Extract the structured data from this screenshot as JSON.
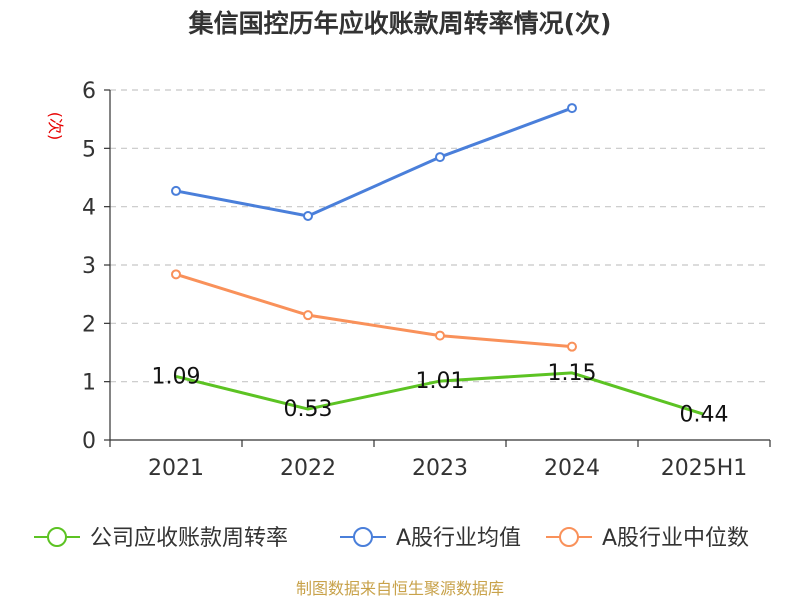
{
  "chart_data": {
    "type": "line",
    "title": "集信国控历年应收账款周转率情况(次)",
    "ylabel": "(次)",
    "xlabel": "",
    "categories": [
      "2021",
      "2022",
      "2023",
      "2024",
      "2025H1"
    ],
    "ylim": [
      0,
      6
    ],
    "yticks": [
      0,
      1,
      2,
      3,
      4,
      5,
      6
    ],
    "grid": true,
    "legend_position": "bottom",
    "series": [
      {
        "name": "公司应收账款周转率",
        "color": "#5cc323",
        "values": [
          1.09,
          0.53,
          1.01,
          1.15,
          0.44
        ],
        "labels": [
          "1.09",
          "0.53",
          "1.01",
          "1.15",
          "0.44"
        ]
      },
      {
        "name": "A股行业均值",
        "color": "#4a7fda",
        "values": [
          4.27,
          3.84,
          4.85,
          5.69,
          null
        ]
      },
      {
        "name": "A股行业中位数",
        "color": "#f9915a",
        "values": [
          2.84,
          2.14,
          1.79,
          1.6,
          null
        ]
      }
    ]
  },
  "source_note": "制图数据来自恒生聚源数据库"
}
